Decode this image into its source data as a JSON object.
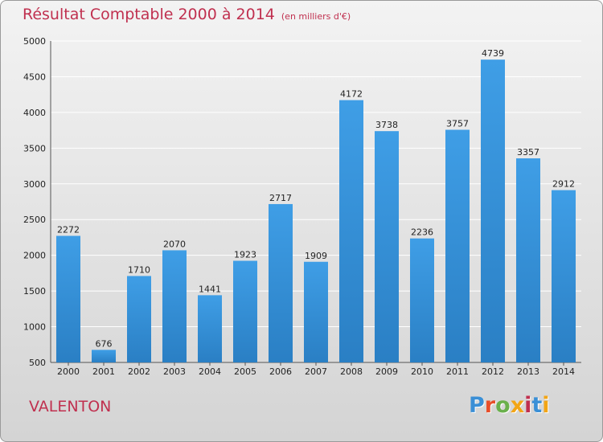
{
  "header": {
    "title": "Résultat Comptable 2000 à 2014",
    "unit": "(en milliers d'€)"
  },
  "footer": {
    "commune": "VALENTON",
    "logo": "Proxiti",
    "logo_colors": [
      "#3a8fd6",
      "#e84e2a",
      "#6ab04c",
      "#f2a516",
      "#c0304f",
      "#3a8fd6",
      "#f2a516"
    ]
  },
  "colors": {
    "bar": "#3f9ee6",
    "bar_dark": "#2a7fc4",
    "title": "#c0304f",
    "grid": "#ffffff"
  },
  "chart_data": {
    "type": "bar",
    "title": "Résultat Comptable 2000 à 2014",
    "subtitle": "(en milliers d'€)",
    "categories": [
      "2000",
      "2001",
      "2002",
      "2003",
      "2004",
      "2005",
      "2006",
      "2007",
      "2008",
      "2009",
      "2010",
      "2011",
      "2012",
      "2013",
      "2014"
    ],
    "values": [
      2272,
      676,
      1710,
      2070,
      1441,
      1923,
      2717,
      1909,
      4172,
      3738,
      2236,
      3757,
      4739,
      3357,
      2912
    ],
    "ylim": [
      500,
      5000
    ],
    "yticks": [
      500,
      1000,
      1500,
      2000,
      2500,
      3000,
      3500,
      4000,
      4500,
      5000
    ],
    "grid": true,
    "legend": "none"
  }
}
